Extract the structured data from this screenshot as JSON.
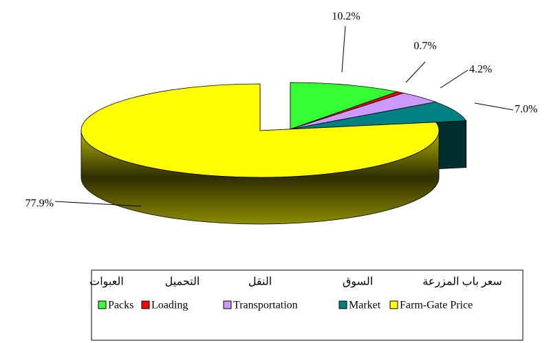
{
  "chart_data": {
    "type": "pie",
    "categories": [
      "Packs",
      "Loading",
      "Transportation",
      "Market",
      "Farm-Gate Price"
    ],
    "arabic_categories": [
      "العبوات",
      "التحميل",
      "النقل",
      "السوق",
      "سعر باب المزرعة"
    ],
    "values": [
      10.2,
      0.7,
      4.2,
      7.0,
      77.9
    ],
    "value_labels": [
      "10.2%",
      "0.7%",
      "4.2%",
      "7.0%",
      "77.9%"
    ],
    "colors": [
      "#33ff33",
      "#ff0000",
      "#cc99ff",
      "#008080",
      "#ffff00"
    ]
  }
}
